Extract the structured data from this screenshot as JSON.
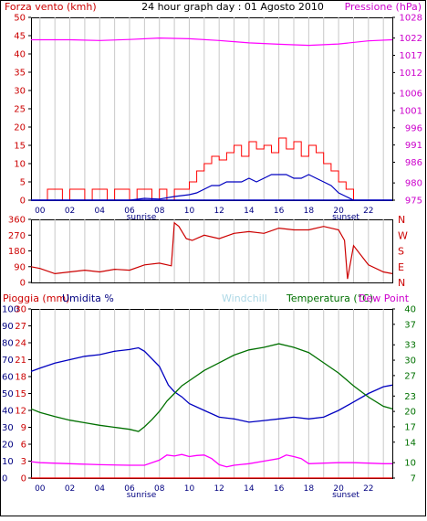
{
  "header": {
    "title": "24 hour graph day : 01 Agosto 2010",
    "left_label": "Forza vento (kmh)",
    "right_label": "Pressione (hPa)"
  },
  "labels": {
    "sunrise": "sunrise",
    "sunset": "sunset",
    "pioggia": "Pioggia (mm)",
    "umidita": "Umidita %",
    "windchill": "Windchill",
    "temperatura": "Temperatura (°C)",
    "dew_point": "Dew Point"
  },
  "colors": {
    "frame": "#000000",
    "grid": "#c8c8c8",
    "wind": "#ff0000",
    "gust": "#ff0000",
    "wind_avg": "#0000c0",
    "pressure": "#ff00ff",
    "direction": "#cc0000",
    "humidity": "#0000c0",
    "temperature": "#007000",
    "dewpoint": "#ff00ff",
    "rain": "#ff0000",
    "windchill": "#add8e6",
    "temp_label": "#007000",
    "left_label": "#cc0000",
    "right_label": "#cc00cc",
    "tick_hours": "#000080"
  },
  "chart_data": [
    {
      "type": "line",
      "title": "24 hour graph day : 01 Agosto 2010",
      "ylabel": "Forza vento (kmh)",
      "y2label": "Pressione (hPa)",
      "xlim": [
        -0.6,
        23.6
      ],
      "ylim": [
        0,
        50
      ],
      "y2lim": [
        975,
        1028
      ],
      "x_ticks": [
        "00",
        "02",
        "04",
        "06",
        "08",
        "10",
        "12",
        "14",
        "16",
        "18",
        "20",
        "22"
      ],
      "x_tick_values": [
        0,
        2,
        4,
        6,
        8,
        10,
        12,
        14,
        16,
        18,
        20,
        22
      ],
      "y_ticks": [
        0,
        5,
        10,
        15,
        20,
        25,
        30,
        35,
        40,
        45,
        50
      ],
      "y2_ticks": [
        975,
        980,
        986,
        991,
        996,
        1001,
        1006,
        1012,
        1017,
        1022,
        1028
      ],
      "sunrise": 6.3,
      "sunset": 20.4,
      "grid": true,
      "series": [
        {
          "name": "Pressione (hPa)",
          "axis": "y2",
          "x": [
            -0.6,
            0,
            2,
            4,
            6,
            8,
            10,
            12,
            14,
            16,
            18,
            20,
            22,
            23.6
          ],
          "values": [
            1021.5,
            1021.5,
            1021.5,
            1021.3,
            1021.6,
            1022,
            1021.8,
            1021.3,
            1020.6,
            1020.2,
            1019.9,
            1020.3,
            1021.2,
            1021.5
          ]
        },
        {
          "name": "Forza vento (kmh)",
          "x": [
            -0.6,
            0,
            0.5,
            1.5,
            2,
            3,
            3.5,
            4.5,
            5,
            6,
            6.5,
            7.5,
            8,
            8.5,
            9,
            9.5,
            10,
            10.5,
            11,
            11.5,
            12,
            12.5,
            13,
            13.5,
            14,
            14.5,
            15,
            15.5,
            16,
            16.5,
            17,
            17.5,
            18,
            18.5,
            19,
            19.5,
            20,
            20.5,
            21,
            23.6
          ],
          "values": [
            0,
            0,
            3,
            0,
            3,
            0,
            3,
            0,
            3,
            0,
            3,
            0,
            3,
            0,
            3,
            3,
            5,
            8,
            10,
            12,
            11,
            13,
            15,
            12,
            16,
            14,
            15,
            13,
            17,
            14,
            16,
            12,
            15,
            13,
            10,
            8,
            5,
            3,
            0,
            0
          ]
        },
        {
          "name": "Vento medio (kmh)",
          "x": [
            -0.6,
            0,
            2,
            4,
            6,
            7,
            8,
            9,
            10,
            10.5,
            11,
            11.5,
            12,
            12.5,
            13,
            13.5,
            14,
            14.5,
            15,
            15.5,
            16,
            16.5,
            17,
            17.5,
            18,
            18.5,
            19,
            19.5,
            20,
            20.5,
            21,
            23.6
          ],
          "values": [
            0,
            0,
            0,
            0,
            0,
            0.5,
            0.3,
            1,
            1.5,
            2,
            3,
            4,
            4,
            5,
            5,
            5,
            6,
            5,
            6,
            7,
            7,
            7,
            6,
            6,
            7,
            6,
            5,
            4,
            2,
            1,
            0,
            0
          ]
        }
      ]
    },
    {
      "type": "line",
      "title": "",
      "ylabel": "",
      "y2label": "N W S E N",
      "xlim": [
        -0.6,
        23.6
      ],
      "ylim": [
        0,
        360
      ],
      "y_ticks": [
        0,
        90,
        180,
        270,
        360
      ],
      "y2_ticks": [
        "N",
        "E",
        "S",
        "W",
        "N"
      ],
      "y2_tick_values": [
        0,
        90,
        180,
        270,
        360
      ],
      "grid": true,
      "series": [
        {
          "name": "Direzione vento",
          "x": [
            -0.6,
            0,
            1,
            2,
            3,
            4,
            5,
            6,
            7,
            8,
            8.8,
            9,
            9.3,
            9.8,
            10.2,
            11,
            12,
            13,
            14,
            15,
            16,
            17,
            18,
            19,
            20,
            20.4,
            20.6,
            21,
            22,
            23,
            23.6
          ],
          "values": [
            90,
            80,
            50,
            60,
            70,
            60,
            75,
            70,
            100,
            110,
            95,
            340,
            320,
            250,
            240,
            270,
            250,
            280,
            290,
            280,
            310,
            300,
            300,
            320,
            300,
            240,
            20,
            210,
            100,
            60,
            50
          ]
        }
      ]
    },
    {
      "type": "line",
      "title": "",
      "ylabel": "Pioggia (mm) / Umidita %",
      "y2label": "Temperatura (°C) / Dew Point",
      "xlim": [
        -0.6,
        23.6
      ],
      "ylim_rain": [
        0,
        30
      ],
      "ylim_humidity": [
        0,
        100
      ],
      "y2lim": [
        7,
        40
      ],
      "x_ticks": [
        "00",
        "02",
        "04",
        "06",
        "08",
        "10",
        "12",
        "14",
        "16",
        "18",
        "20",
        "22"
      ],
      "x_tick_values": [
        0,
        2,
        4,
        6,
        8,
        10,
        12,
        14,
        16,
        18,
        20,
        22
      ],
      "rain_ticks": [
        0,
        3,
        6,
        9,
        12,
        15,
        18,
        21,
        24,
        27,
        30
      ],
      "humidity_ticks": [
        0,
        10,
        20,
        30,
        40,
        50,
        60,
        70,
        80,
        90,
        100
      ],
      "y2_ticks": [
        7,
        10,
        14,
        17,
        20,
        23,
        27,
        30,
        33,
        37,
        40
      ],
      "sunrise": 6.3,
      "sunset": 20.4,
      "grid": true,
      "series": [
        {
          "name": "Umidita %",
          "axis": "humidity",
          "x": [
            -0.6,
            0,
            1,
            2,
            3,
            4,
            5,
            6,
            6.6,
            7,
            8,
            8.6,
            9,
            9.5,
            10,
            11,
            12,
            13,
            14,
            15,
            16,
            17,
            18,
            19,
            20,
            21,
            22,
            23,
            23.6
          ],
          "values": [
            63,
            65,
            68,
            70,
            72,
            73,
            75,
            76,
            77,
            75,
            66,
            55,
            51,
            48,
            44,
            40,
            36,
            35,
            33,
            34,
            35,
            36,
            35,
            36,
            40,
            45,
            50,
            54,
            55
          ]
        },
        {
          "name": "Temperatura (°C)",
          "axis": "y2",
          "x": [
            -0.6,
            0,
            1,
            2,
            3,
            4,
            5,
            6,
            6.6,
            7,
            7.5,
            8,
            8.5,
            9,
            9.5,
            10,
            11,
            12,
            13,
            14,
            15,
            16,
            17,
            18,
            19,
            20,
            21,
            22,
            23,
            23.6
          ],
          "values": [
            20.5,
            19.8,
            19.0,
            18.3,
            17.8,
            17.3,
            16.9,
            16.5,
            16.1,
            17.0,
            18.4,
            20.0,
            22.0,
            23.5,
            25.0,
            26.0,
            28.0,
            29.5,
            31.0,
            32.0,
            32.5,
            33.2,
            32.5,
            31.5,
            29.5,
            27.5,
            25.0,
            22.8,
            21.0,
            20.5
          ]
        },
        {
          "name": "Dew Point",
          "axis": "y2",
          "x": [
            -0.6,
            0,
            2,
            4,
            6,
            7,
            8,
            8.5,
            9,
            9.5,
            10,
            10.5,
            11,
            11.5,
            12,
            12.5,
            13,
            14,
            15,
            16,
            16.5,
            17,
            17.5,
            18,
            19,
            20,
            21,
            22,
            23,
            23.6
          ],
          "values": [
            10.2,
            10.0,
            9.8,
            9.6,
            9.5,
            9.5,
            10.5,
            11.5,
            11.3,
            11.6,
            11.2,
            11.4,
            11.5,
            10.8,
            9.6,
            9.2,
            9.5,
            9.8,
            10.3,
            10.8,
            11.5,
            11.2,
            10.8,
            9.8,
            9.9,
            10.0,
            10.0,
            9.9,
            9.8,
            9.8
          ]
        },
        {
          "name": "Pioggia (mm)",
          "axis": "rain",
          "x": [
            -0.6,
            23.6
          ],
          "values": [
            0,
            0
          ]
        }
      ]
    }
  ]
}
